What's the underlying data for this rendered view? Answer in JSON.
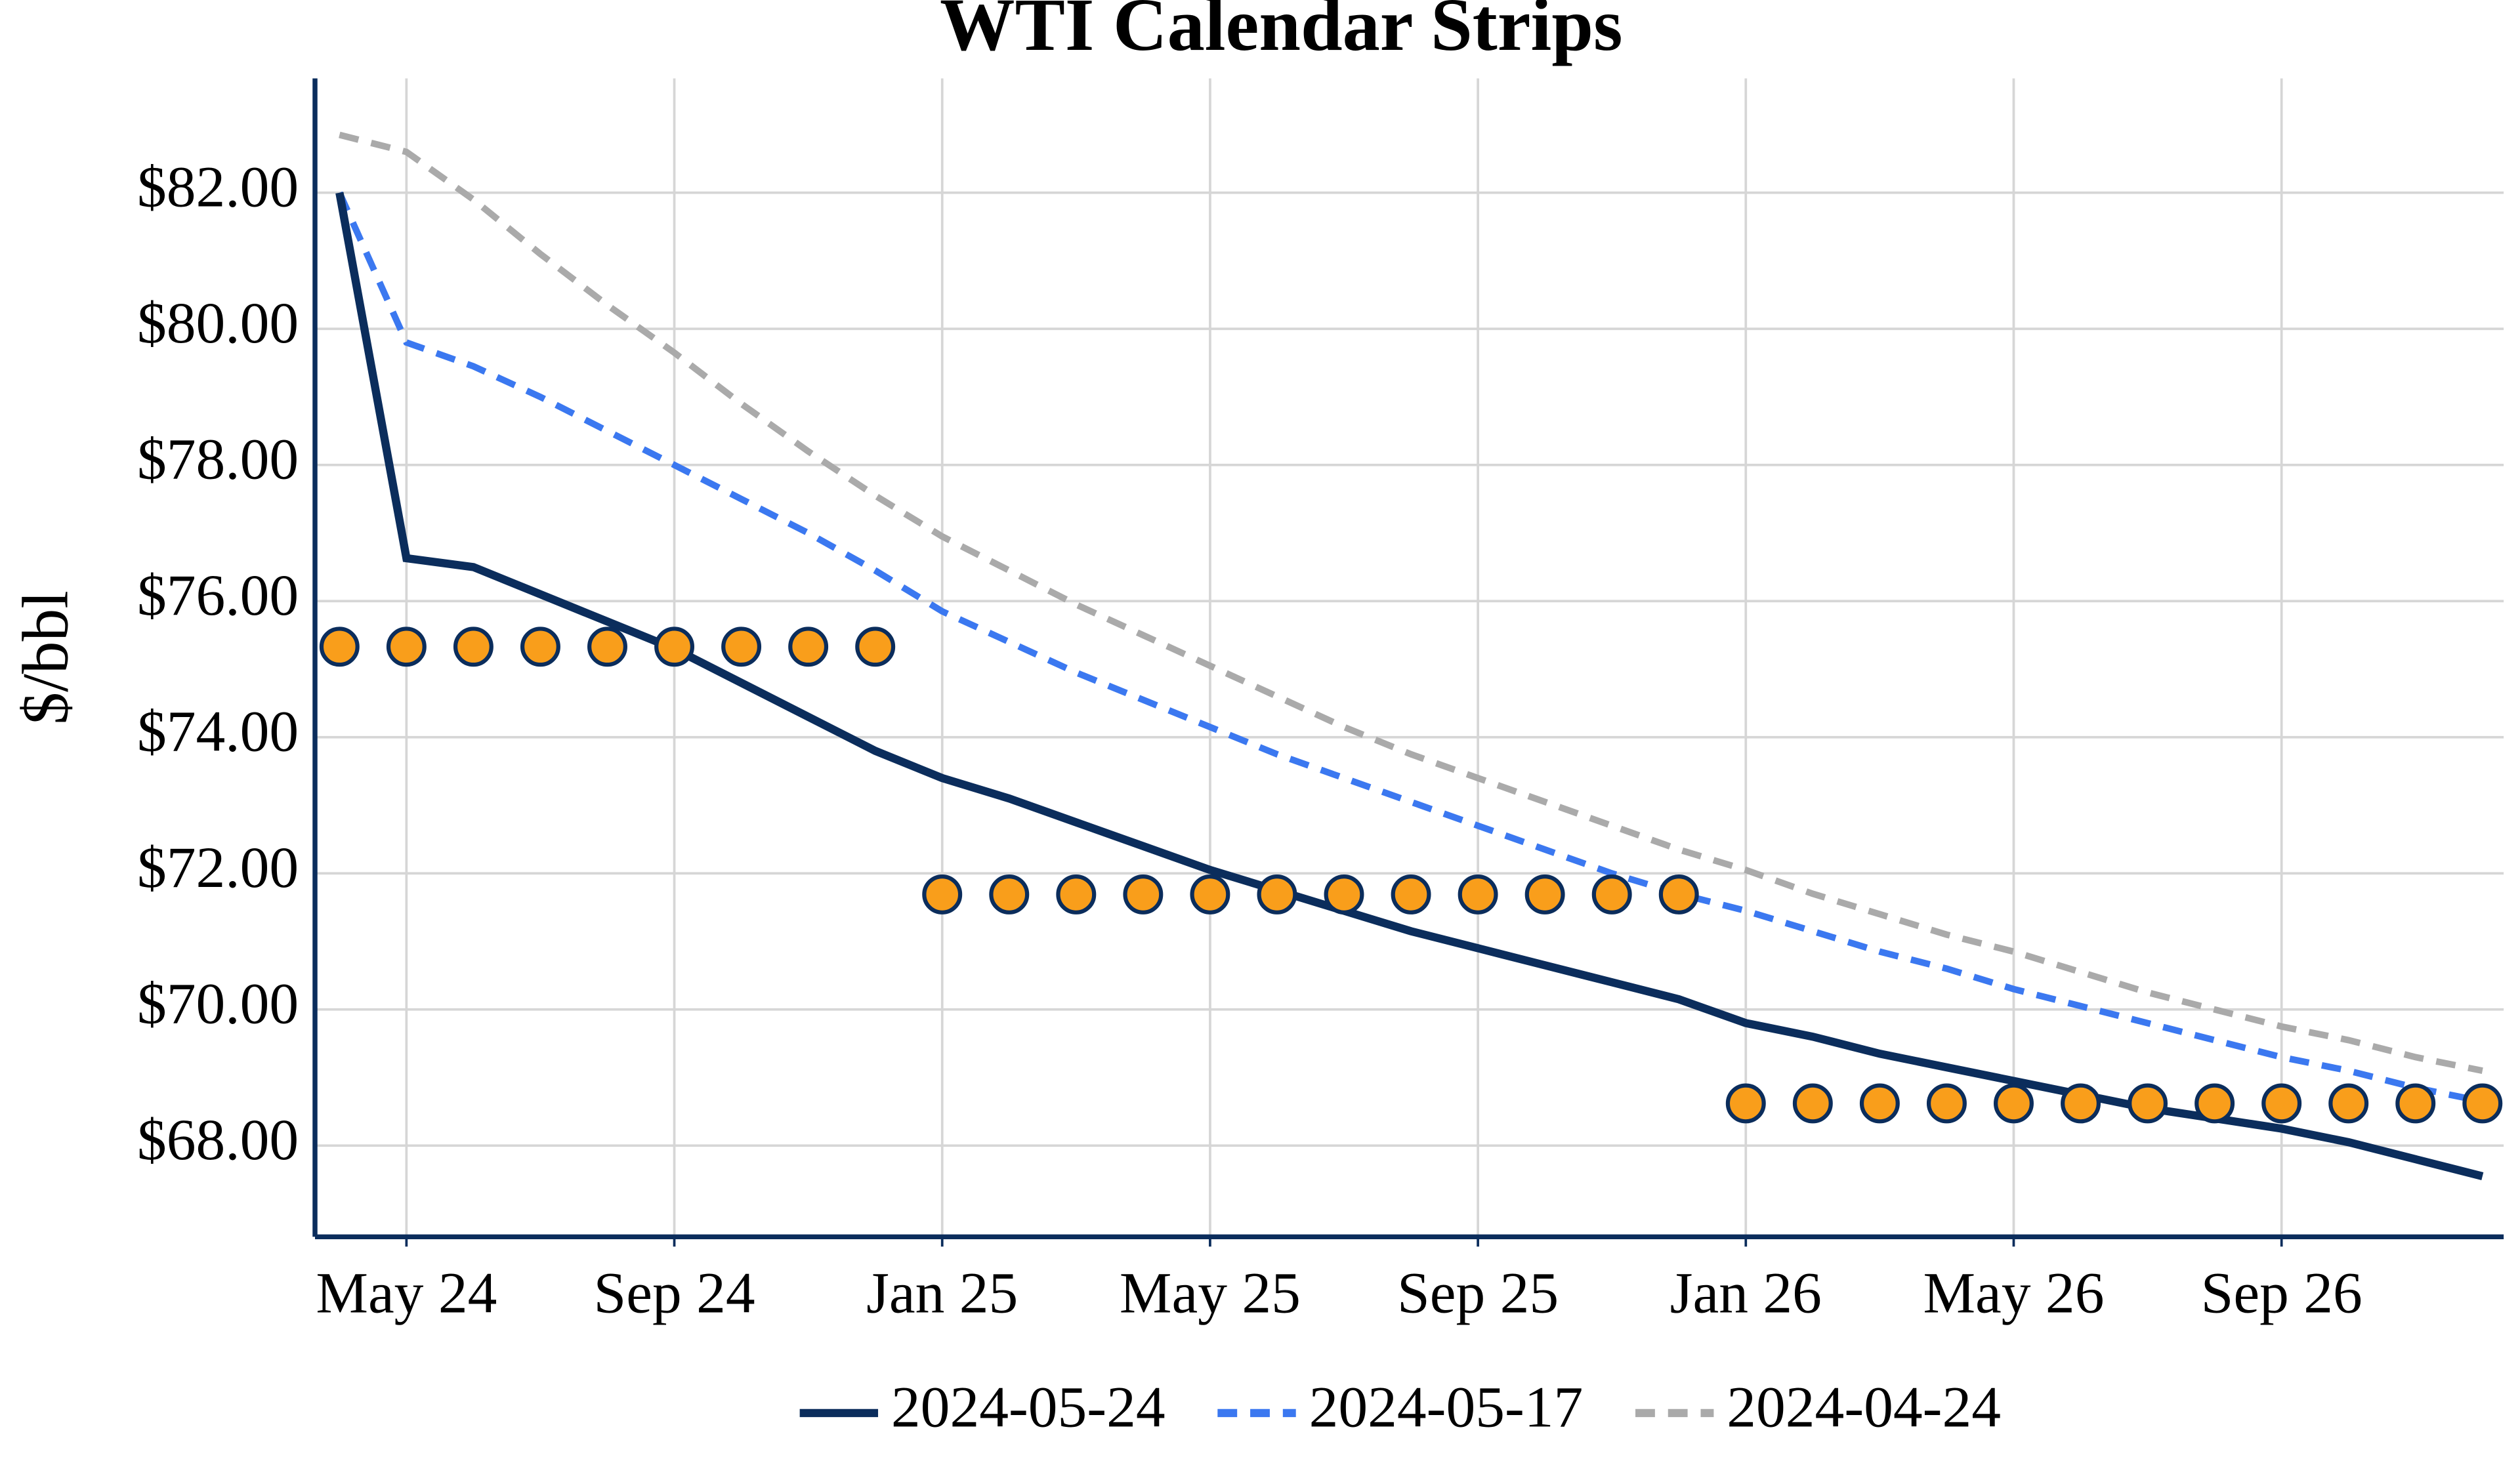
{
  "chart_data": {
    "type": "line",
    "title": "WTI Calendar Strips",
    "y_label": "$/bbl",
    "x": [
      "2024-04",
      "2024-05",
      "2024-06",
      "2024-07",
      "2024-08",
      "2024-09",
      "2024-10",
      "2024-11",
      "2024-12",
      "2025-01",
      "2025-02",
      "2025-03",
      "2025-04",
      "2025-05",
      "2025-06",
      "2025-07",
      "2025-08",
      "2025-09",
      "2025-10",
      "2025-11",
      "2025-12",
      "2026-01",
      "2026-02",
      "2026-03",
      "2026-04",
      "2026-05",
      "2026-06",
      "2026-07",
      "2026-08",
      "2026-09",
      "2026-10",
      "2026-11",
      "2026-12"
    ],
    "xlim": [
      "2024-04",
      "2026-12"
    ],
    "xticks": [
      {
        "value": "2024-05",
        "label": "May 24"
      },
      {
        "value": "2024-09",
        "label": "Sep 24"
      },
      {
        "value": "2025-01",
        "label": "Jan 25"
      },
      {
        "value": "2025-05",
        "label": "May 25"
      },
      {
        "value": "2025-09",
        "label": "Sep 25"
      },
      {
        "value": "2026-01",
        "label": "Jan 26"
      },
      {
        "value": "2026-05",
        "label": "May 26"
      },
      {
        "value": "2026-09",
        "label": "Sep 26"
      }
    ],
    "ylim": [
      66.66,
      83.68
    ],
    "yticks": [
      {
        "value": 68,
        "label": "$68.00"
      },
      {
        "value": 70,
        "label": "$70.00"
      },
      {
        "value": 72,
        "label": "$72.00"
      },
      {
        "value": 74,
        "label": "$74.00"
      },
      {
        "value": 76,
        "label": "$76.00"
      },
      {
        "value": 78,
        "label": "$78.00"
      },
      {
        "value": 80,
        "label": "$80.00"
      },
      {
        "value": 82,
        "label": "$82.00"
      }
    ],
    "grid": true,
    "legend": "bottom",
    "series": [
      {
        "name": "2024-05-24",
        "color": "#0b2d5c",
        "dash": "solid",
        "values": [
          82.0,
          76.63,
          76.5,
          76.1,
          75.7,
          75.3,
          74.8,
          74.3,
          73.8,
          73.4,
          73.1,
          72.75,
          72.4,
          72.05,
          71.75,
          71.45,
          71.15,
          70.9,
          70.65,
          70.4,
          70.15,
          69.8,
          69.6,
          69.35,
          69.15,
          68.95,
          68.75,
          68.55,
          68.4,
          68.25,
          68.05,
          67.8,
          67.55
        ]
      },
      {
        "name": "2024-05-17",
        "color": "#3b78f0",
        "dash": "dashed",
        "values": [
          82.0,
          79.8,
          79.45,
          79.0,
          78.5,
          78.0,
          77.5,
          77.0,
          76.45,
          75.85,
          75.4,
          74.95,
          74.55,
          74.15,
          73.75,
          73.4,
          73.05,
          72.7,
          72.35,
          72.0,
          71.7,
          71.45,
          71.15,
          70.85,
          70.6,
          70.3,
          70.05,
          69.8,
          69.55,
          69.3,
          69.1,
          68.85,
          68.65
        ]
      },
      {
        "name": "2024-04-24",
        "color": "#aaaaaa",
        "dash": "dashed",
        "values": [
          82.85,
          82.6,
          81.9,
          81.1,
          80.35,
          79.65,
          78.9,
          78.2,
          77.55,
          76.95,
          76.45,
          75.95,
          75.5,
          75.05,
          74.6,
          74.15,
          73.75,
          73.4,
          73.05,
          72.7,
          72.35,
          72.05,
          71.7,
          71.4,
          71.1,
          70.85,
          70.55,
          70.25,
          70.0,
          69.75,
          69.55,
          69.3,
          69.1
        ]
      }
    ],
    "strips": {
      "color": "#f99e1b",
      "edge_color": "#0b2d5c",
      "values": [
        75.33,
        75.33,
        75.33,
        75.33,
        75.33,
        75.33,
        75.33,
        75.33,
        75.33,
        71.69,
        71.69,
        71.69,
        71.69,
        71.69,
        71.69,
        71.69,
        71.69,
        71.69,
        71.69,
        71.69,
        71.69,
        68.62,
        68.62,
        68.62,
        68.62,
        68.62,
        68.62,
        68.62,
        68.62,
        68.62,
        68.62,
        68.62,
        68.62
      ]
    }
  }
}
